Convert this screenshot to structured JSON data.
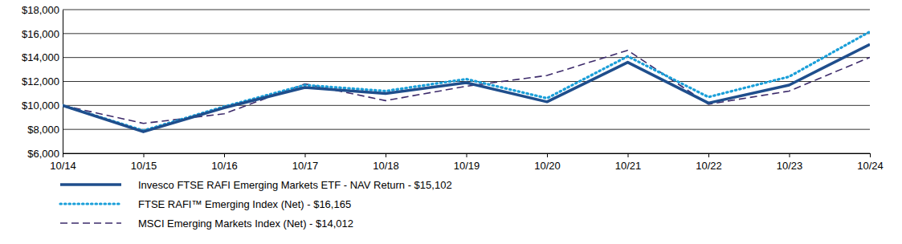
{
  "chart_data": {
    "type": "line",
    "categories": [
      "10/14",
      "10/15",
      "10/16",
      "10/17",
      "10/18",
      "10/19",
      "10/20",
      "10/21",
      "10/22",
      "10/23",
      "10/24"
    ],
    "series": [
      {
        "name": "Invesco FTSE RAFI Emerging Markets ETF - NAV Return - $15,102",
        "color": "#1f4e8c",
        "line_style": "solid",
        "values": [
          10000,
          7800,
          9800,
          11500,
          11000,
          11900,
          10300,
          13600,
          10200,
          11700,
          15102
        ]
      },
      {
        "name": "FTSE RAFI™ Emerging Index (Net) - $16,165",
        "color": "#1a9fd9",
        "line_style": "dotted",
        "values": [
          10000,
          7900,
          9900,
          11700,
          11200,
          12200,
          10600,
          14100,
          10700,
          12400,
          16165
        ]
      },
      {
        "name": "MSCI Emerging Markets Index (Net) - $14,012",
        "color": "#3d2b6b",
        "line_style": "dashed",
        "values": [
          10000,
          8500,
          9300,
          11800,
          10400,
          11600,
          12500,
          14600,
          10100,
          11200,
          14012
        ]
      }
    ],
    "ylim": [
      6000,
      18000
    ],
    "yticks": [
      {
        "value": 6000,
        "label": "$6,000"
      },
      {
        "value": 8000,
        "label": "$8,000"
      },
      {
        "value": 10000,
        "label": "$10,000"
      },
      {
        "value": 12000,
        "label": "$12,000"
      },
      {
        "value": 14000,
        "label": "$14,000"
      },
      {
        "value": 16000,
        "label": "$16,000"
      },
      {
        "value": 18000,
        "label": "$18,000"
      }
    ],
    "grid": true,
    "legend": "bottom"
  }
}
